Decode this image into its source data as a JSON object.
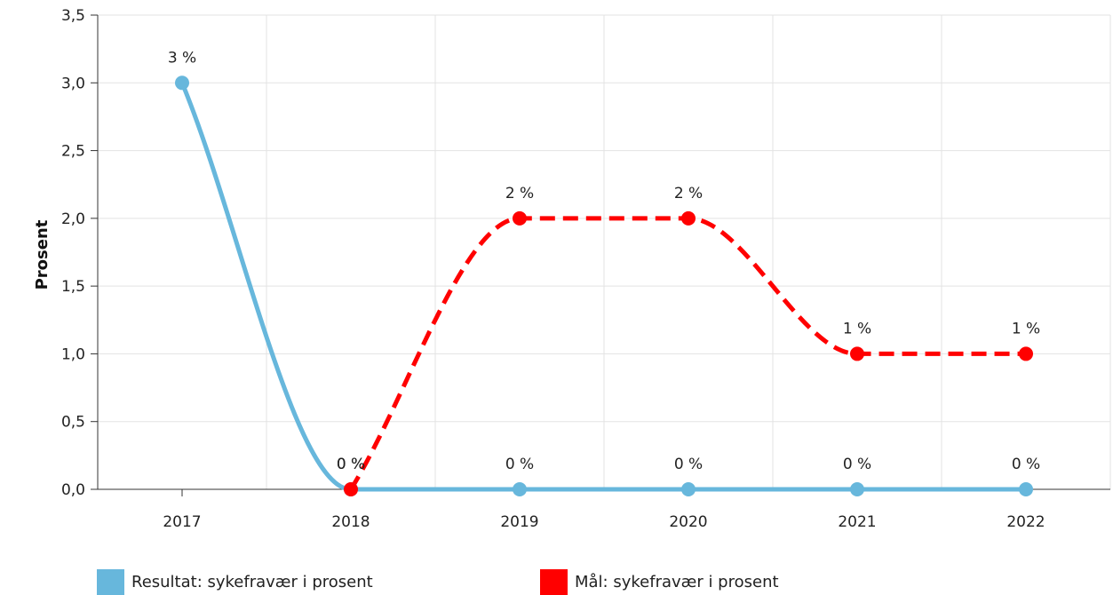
{
  "chart_data": {
    "type": "line",
    "title": "",
    "xlabel": "",
    "ylabel": "Prosent",
    "categories": [
      "2017",
      "2018",
      "2019",
      "2020",
      "2021",
      "2022"
    ],
    "ylim": [
      0,
      3.5
    ],
    "yticks": [
      "0,0",
      "0,5",
      "1,0",
      "1,5",
      "2,0",
      "2,5",
      "3,0",
      "3,5"
    ],
    "grid": true,
    "smooth": true,
    "legend_position": "bottom-left",
    "series": [
      {
        "name": "Resultat: sykefravær i prosent",
        "color": "#67b7dc",
        "style": "solid",
        "values": [
          3,
          0,
          0,
          0,
          0,
          0
        ],
        "labels": [
          "3 %",
          "0 %",
          "0 %",
          "0 %",
          "0 %",
          "0 %"
        ]
      },
      {
        "name": "Mål: sykefravær i prosent",
        "color": "#ff0000",
        "style": "dashed",
        "values": [
          null,
          0,
          2,
          2,
          1,
          1
        ],
        "labels": [
          "",
          "0 %",
          "2 %",
          "2 %",
          "1 %",
          "1 %"
        ]
      }
    ]
  }
}
